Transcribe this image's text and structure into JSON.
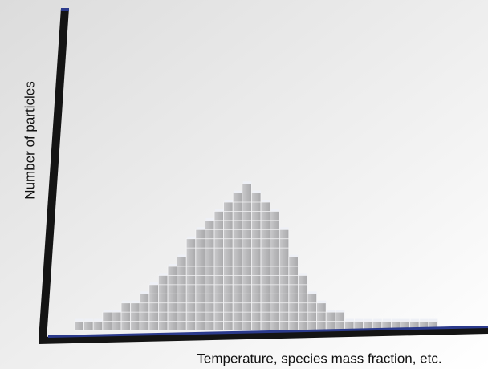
{
  "chart_data": {
    "type": "bar",
    "xlabel": "Temperature, species mass fraction, etc.",
    "ylabel": "Number of particles",
    "categories": [
      null,
      null,
      null,
      null,
      null,
      null,
      null,
      null,
      null,
      null,
      null,
      null,
      null,
      null,
      null,
      null,
      null,
      null,
      null,
      null,
      null,
      null,
      null,
      null,
      null,
      null,
      null,
      null,
      null,
      null,
      null,
      null,
      null,
      null,
      null,
      null,
      null,
      null,
      null
    ],
    "values": [
      1,
      1,
      1,
      2,
      2,
      3,
      3,
      4,
      5,
      6,
      7,
      8,
      10,
      11,
      12,
      13,
      14,
      15,
      16,
      15,
      14,
      13,
      11,
      8,
      6,
      4,
      3,
      2,
      2,
      1,
      1,
      1,
      1,
      1,
      1,
      1,
      1,
      1,
      1
    ],
    "color": "#b9b9bb",
    "ylim": [
      0,
      35
    ],
    "grid": false
  }
}
